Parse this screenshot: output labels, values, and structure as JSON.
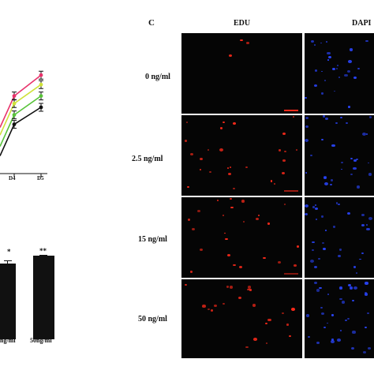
{
  "panel_label": "C",
  "column_headers": [
    "EDU",
    "DAPI"
  ],
  "row_labels": [
    "0 ng/ml",
    "2.5 ng/ml",
    "15 ng/ml",
    "50 ng/ml"
  ],
  "colors": {
    "edu": "#ff2a1a",
    "dapi": "#2a46ff",
    "line_pink": "#e8336b",
    "line_yellow": "#cfe23a",
    "line_green": "#58c33a",
    "line_black": "#111111",
    "bar": "#111111"
  },
  "chart_data": [
    {
      "type": "line",
      "categories": [
        "D4",
        "D5"
      ],
      "series": [
        {
          "values": [
            0.82,
            1.04
          ]
        },
        {
          "values": [
            0.74,
            0.94
          ]
        },
        {
          "values": [
            0.62,
            0.82
          ]
        },
        {
          "values": [
            0.52,
            0.7
          ]
        }
      ]
    },
    {
      "type": "bar",
      "categories": [
        "ng/ml",
        "50ng/ml"
      ],
      "values": [
        1.0,
        1.08
      ],
      "annotations": [
        "*",
        "**"
      ]
    }
  ]
}
